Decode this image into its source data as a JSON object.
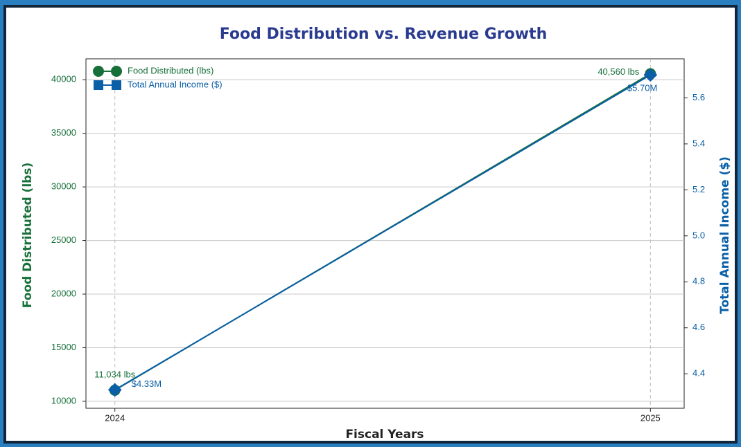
{
  "chart_data": {
    "type": "line",
    "title": "Food Distribution vs. Revenue Growth",
    "xlabel": "Fiscal Years",
    "ylabel": "Food Distributed (lbs)",
    "y2label": "Total Annual Income ($)",
    "x": [
      2024,
      2025
    ],
    "xlim": [
      2023.946,
      2025.063
    ],
    "xticks": [
      2024,
      2025
    ],
    "ylim": [
      9350,
      41950
    ],
    "yticks": [
      10000,
      15000,
      20000,
      25000,
      30000,
      35000,
      40000
    ],
    "y2lim": [
      4.25,
      5.77
    ],
    "y2ticks": [
      4.4,
      4.6,
      4.8,
      {
        "value": 5,
        "label": "5.0"
      },
      5.2,
      5.4,
      5.6
    ],
    "grid": true,
    "legend": "upper left",
    "series": [
      {
        "name": "Food Distributed (lbs)",
        "color": "#17703a",
        "marker": "circle",
        "values": [
          11034,
          40560
        ],
        "value_labels": [
          "11,034 lbs",
          "40,560 lbs"
        ]
      },
      {
        "name": "Total Annual Income ($)",
        "color": "#0a5fa6",
        "marker": "square",
        "axis": "y2",
        "values": [
          4.33,
          5.7
        ],
        "value_labels": [
          "$4.33M",
          "$5.70M"
        ]
      }
    ]
  }
}
